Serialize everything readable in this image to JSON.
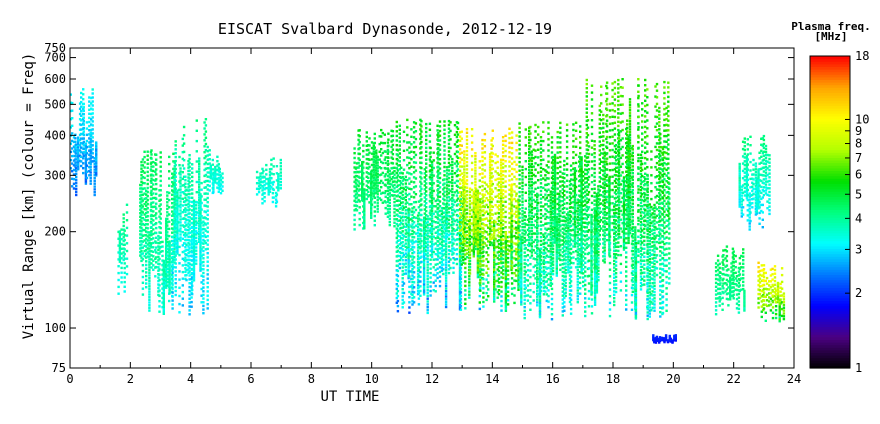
{
  "chart_data": {
    "type": "scatter",
    "title": "EISCAT Svalbard Dynasonde, 2012-12-19",
    "xlabel": "UT TIME",
    "ylabel": "Virtual Range [km] (colour = Freq)",
    "xlim": [
      0,
      24
    ],
    "ylim": [
      75,
      750
    ],
    "y_scale": "log",
    "x_ticks": [
      0,
      2,
      4,
      6,
      8,
      10,
      12,
      14,
      16,
      18,
      20,
      22,
      24
    ],
    "y_ticks": [
      75,
      100,
      200,
      300,
      400,
      500,
      600,
      700,
      750
    ],
    "grid": false,
    "colorbar": {
      "title": "Plasma freq.",
      "unit": "[MHz]",
      "scale": "log",
      "range": [
        1,
        18
      ],
      "ticks": [
        1,
        2,
        3,
        4,
        5,
        6,
        7,
        8,
        9,
        10,
        18
      ],
      "colors": [
        "#000000",
        "#4b0082",
        "#0000ff",
        "#0078ff",
        "#00ffff",
        "#00ff7f",
        "#00e000",
        "#b4ff00",
        "#ffff00",
        "#ffa500",
        "#ff0000"
      ]
    },
    "series": [
      {
        "clusters": [
          {
            "t": [
              0.0,
              0.9
            ],
            "h": [
              260,
              560
            ],
            "f": [
              2.0,
              3.5
            ]
          },
          {
            "t": [
              1.6,
              1.9
            ],
            "h": [
              125,
              250
            ],
            "f": [
              3.0,
              4.5
            ]
          },
          {
            "t": [
              2.3,
              3.5
            ],
            "h": [
              110,
              360
            ],
            "f": [
              3.0,
              5.0
            ]
          },
          {
            "t": [
              3.4,
              4.6
            ],
            "h": [
              110,
              450
            ],
            "f": [
              2.5,
              4.5
            ]
          },
          {
            "t": [
              4.6,
              5.1
            ],
            "h": [
              260,
              360
            ],
            "f": [
              3.0,
              4.0
            ]
          },
          {
            "t": [
              6.2,
              7.0
            ],
            "h": [
              240,
              340
            ],
            "f": [
              3.0,
              4.0
            ]
          },
          {
            "t": [
              9.4,
              10.8
            ],
            "h": [
              200,
              420
            ],
            "f": [
              3.5,
              5.5
            ]
          },
          {
            "t": [
              10.8,
              13.0
            ],
            "h": [
              110,
              450
            ],
            "f": [
              2.0,
              6.0
            ]
          },
          {
            "t": [
              12.9,
              14.9
            ],
            "h": [
              110,
              420
            ],
            "f": [
              2.0,
              12.0
            ]
          },
          {
            "t": [
              14.9,
              16.9
            ],
            "h": [
              105,
              440
            ],
            "f": [
              2.5,
              6.5
            ]
          },
          {
            "t": [
              16.9,
              19.9
            ],
            "h": [
              105,
              600
            ],
            "f": [
              2.5,
              7.0
            ]
          },
          {
            "t": [
              19.3,
              20.1
            ],
            "h": [
              90,
              95
            ],
            "f": [
              1.8,
              2.0
            ]
          },
          {
            "t": [
              21.4,
              22.4
            ],
            "h": [
              110,
              180
            ],
            "f": [
              3.5,
              5.0
            ]
          },
          {
            "t": [
              22.2,
              23.2
            ],
            "h": [
              200,
              400
            ],
            "f": [
              2.5,
              4.5
            ]
          },
          {
            "t": [
              22.8,
              23.7
            ],
            "h": [
              105,
              160
            ],
            "f": [
              3.5,
              12.0
            ]
          }
        ]
      }
    ]
  }
}
